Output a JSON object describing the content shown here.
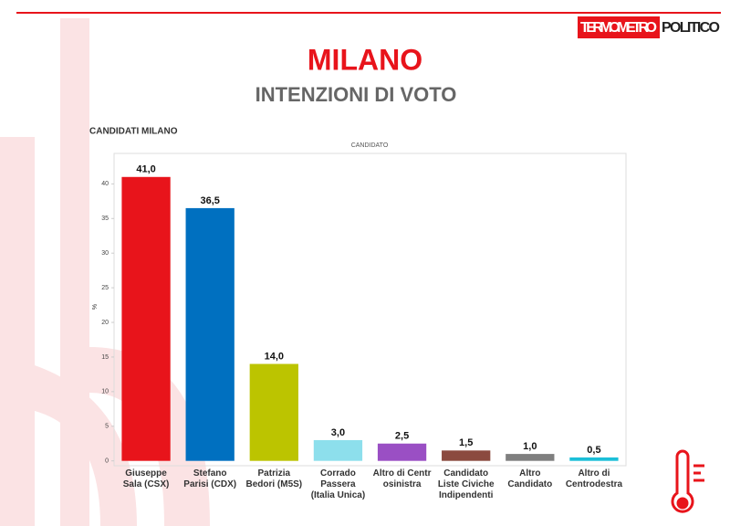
{
  "header": {
    "brand_left": "TERMOMETRO",
    "brand_right": "POLITICO",
    "title": "MILANO",
    "subtitle": "INTENZIONI DI VOTO"
  },
  "chart_data": {
    "type": "bar",
    "title": "CANDIDATI MILANO",
    "x_label": "CANDIDATO",
    "y_label": "%",
    "categories": [
      "Giuseppe\nSala (CSX)",
      "Stefano\nParisi (CDX)",
      "Patrizia\nBedori (M5S)",
      "Corrado\nPassera\n(Italia Unica)",
      "Altro di Centr\nosinistra",
      "Candidato\nListe Civiche\nIndipendenti",
      "Altro\nCandidato",
      "Altro di\nCentrodestra"
    ],
    "values": [
      41.0,
      36.5,
      14.0,
      3.0,
      2.5,
      1.5,
      1.0,
      0.5
    ],
    "value_labels": [
      "41,0",
      "36,5",
      "14,0",
      "3,0",
      "2,5",
      "1,5",
      "1,0",
      "0,5"
    ],
    "colors": [
      "#e8141b",
      "#0070c0",
      "#bcc400",
      "#8ddfec",
      "#9a4fc4",
      "#8b4a3f",
      "#7f7f7f",
      "#1bbfd8"
    ],
    "ylim": [
      -0.7,
      44.4
    ],
    "yticks": [
      0,
      5,
      10,
      15,
      20,
      25,
      30,
      35,
      40
    ],
    "grid": false
  }
}
